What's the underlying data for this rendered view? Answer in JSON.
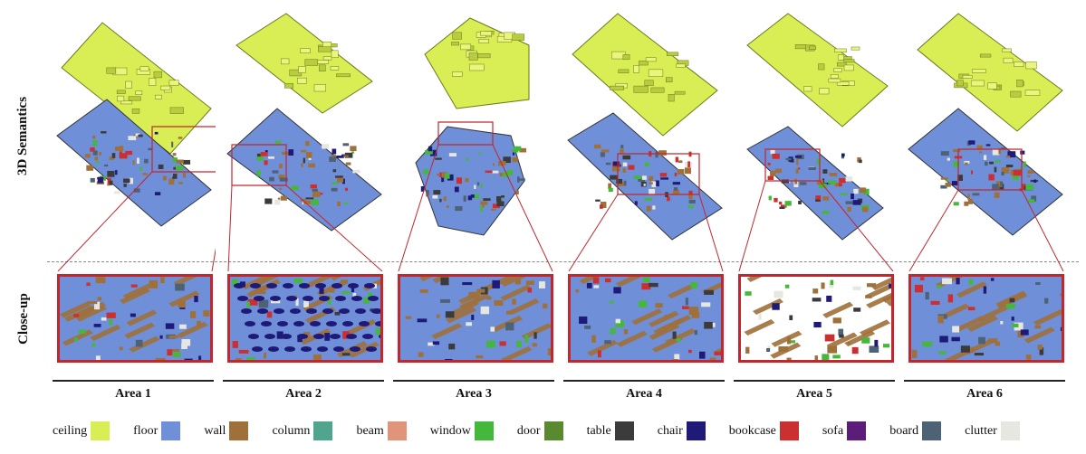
{
  "row_labels": {
    "semantics": "3D Semantics",
    "closeup": "Close-up"
  },
  "areas": [
    {
      "label": "Area 1"
    },
    {
      "label": "Area 2"
    },
    {
      "label": "Area 3"
    },
    {
      "label": "Area 4"
    },
    {
      "label": "Area 5"
    },
    {
      "label": "Area 6"
    }
  ],
  "legend": [
    {
      "label": "ceiling",
      "color": "#d9ee55"
    },
    {
      "label": "floor",
      "color": "#6f8fd8"
    },
    {
      "label": "wall",
      "color": "#a0703a"
    },
    {
      "label": "column",
      "color": "#4fa58e"
    },
    {
      "label": "beam",
      "color": "#e0957a"
    },
    {
      "label": "window",
      "color": "#43b83a"
    },
    {
      "label": "door",
      "color": "#5a8a30"
    },
    {
      "label": "table",
      "color": "#3b3b3b"
    },
    {
      "label": "chair",
      "color": "#1f1a78"
    },
    {
      "label": "bookcase",
      "color": "#cc2f2f"
    },
    {
      "label": "sofa",
      "color": "#5c1d7a"
    },
    {
      "label": "board",
      "color": "#4d6375"
    },
    {
      "label": "clutter",
      "color": "#e7e7e2"
    }
  ]
}
